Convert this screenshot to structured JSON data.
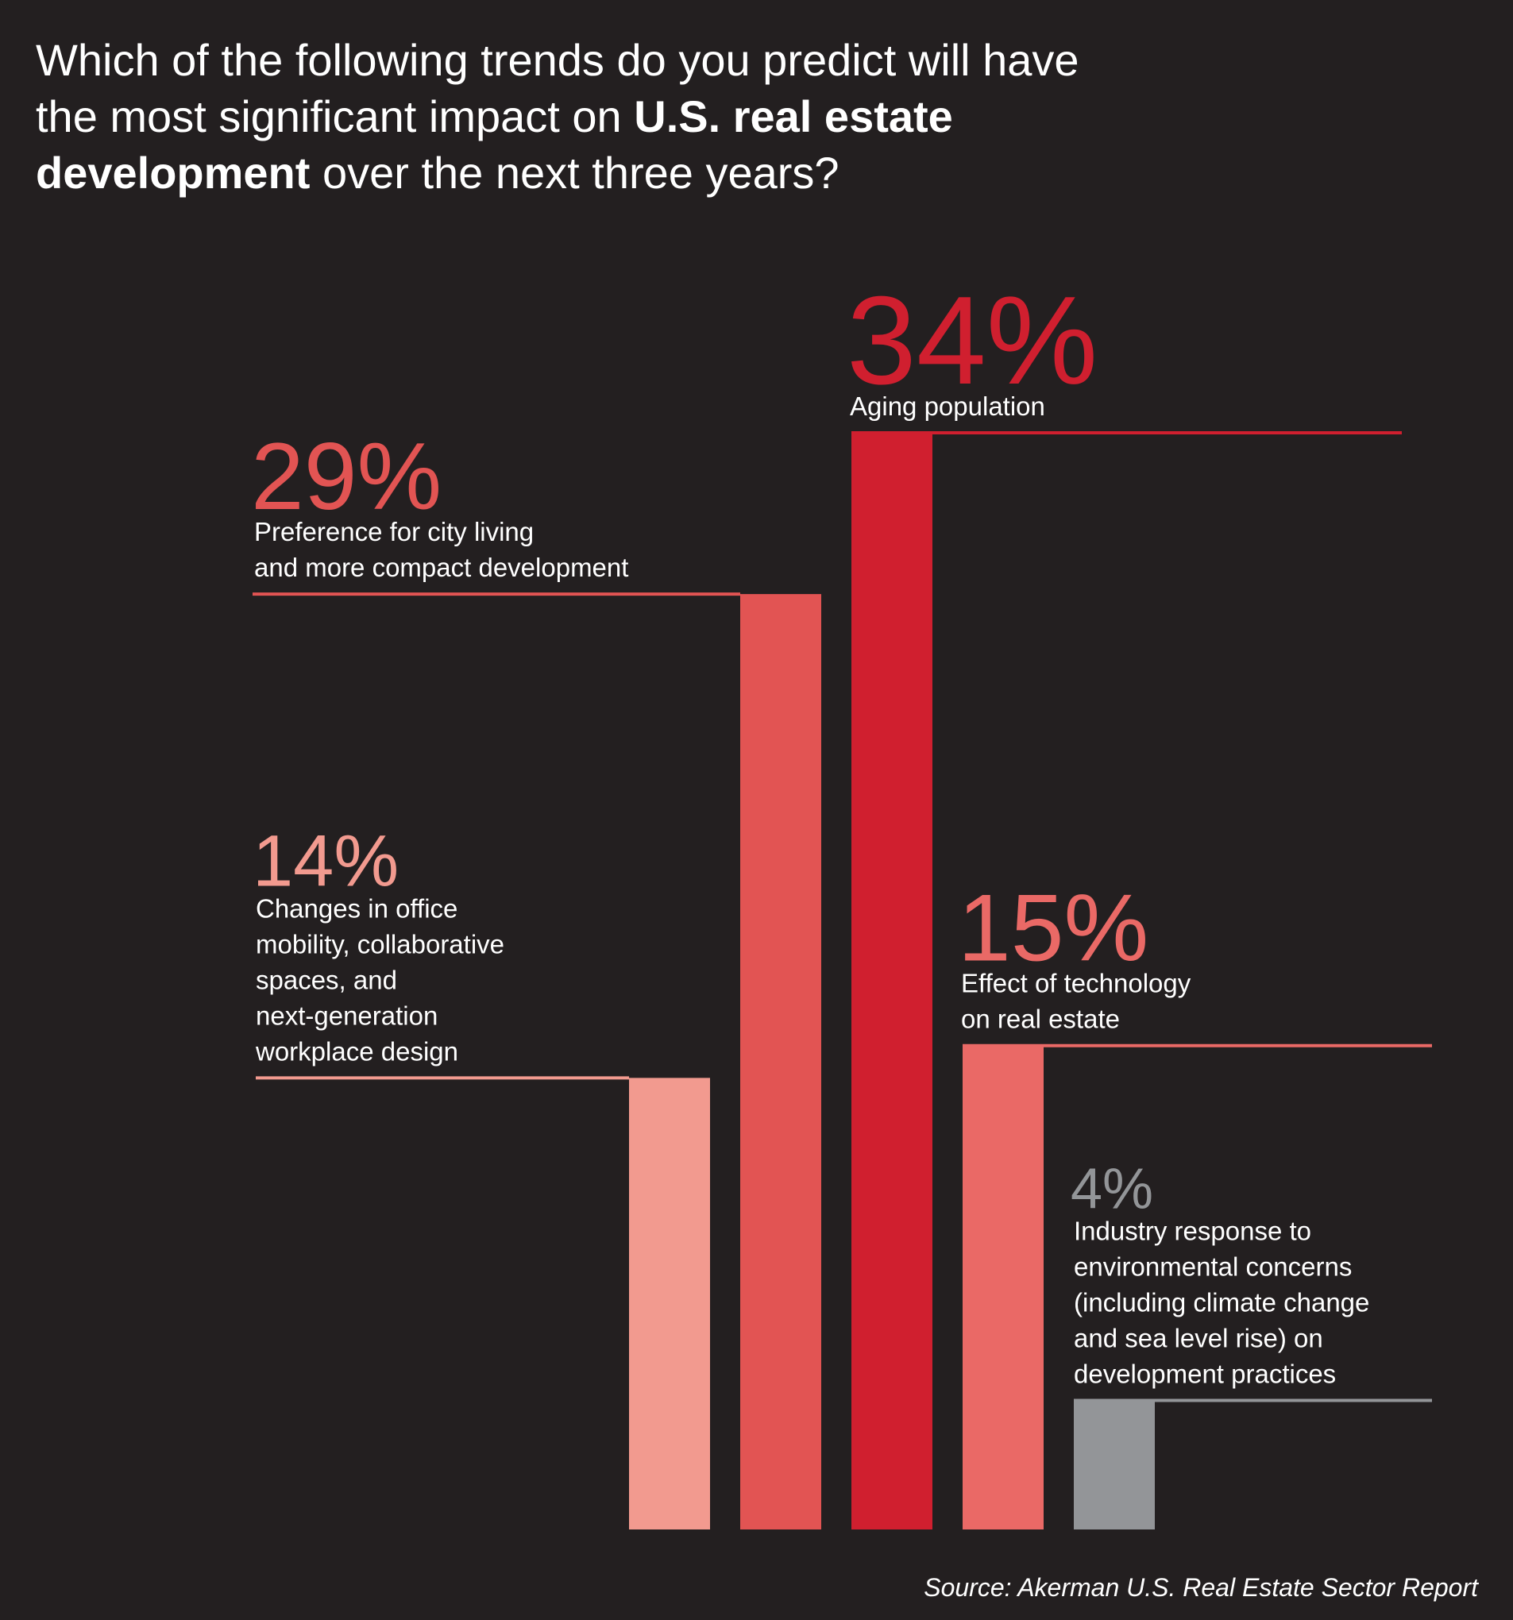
{
  "title": {
    "part1": "Which of the following trends do you predict will have the most significant impact on ",
    "bold1": "U.S. real estate development",
    "part2": " over the next three years?"
  },
  "source": "Source: Akerman U.S. Real Estate Sector Report",
  "chart_data": {
    "type": "bar",
    "categories": [
      "Changes in office mobility, collaborative spaces, and next-generation workplace design",
      "Preference for city living and more compact development",
      "Aging population",
      "Effect of technology on real estate",
      "Industry response to environmental  concerns (including climate change and sea level rise) on development practices"
    ],
    "values": [
      14,
      29,
      34,
      15,
      4
    ],
    "value_labels": [
      "14%",
      "29%",
      "34%",
      "15%",
      "4%"
    ],
    "label_lines": [
      [
        "Changes in office",
        "mobility, collaborative",
        "spaces, and",
        "next-generation",
        "workplace design"
      ],
      [
        "Preference for city living",
        "and more compact development"
      ],
      [
        "Aging population"
      ],
      [
        "Effect of technology",
        "on real estate"
      ],
      [
        "Industry response to",
        "environmental  concerns",
        "(including climate change",
        "and sea level rise) on",
        "development practices"
      ]
    ],
    "colors": [
      "#f29a8f",
      "#e25453",
      "#d01f2f",
      "#ea6966",
      "#939598"
    ],
    "value_label_colors": [
      "#f29a8f",
      "#e25453",
      "#d01f2f",
      "#ea6966",
      "#939598"
    ],
    "ylim": [
      0,
      34
    ]
  }
}
